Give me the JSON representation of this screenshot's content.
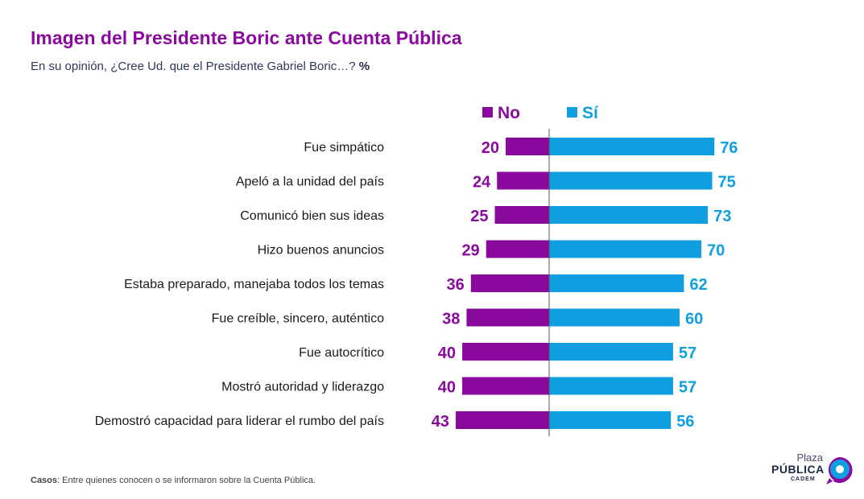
{
  "header": {
    "title": "Imagen del Presidente Boric ante Cuenta Pública",
    "subtitle": "En su opinión, ¿Cree Ud. que el Presidente Gabriel Boric…?",
    "unit": "%"
  },
  "chart_data": {
    "type": "bar",
    "orientation": "horizontal-diverging",
    "categories": [
      "Fue simpático",
      "Apeló a la unidad del país",
      "Comunicó bien sus ideas",
      "Hizo buenos anuncios",
      "Estaba preparado, manejaba todos los temas",
      "Fue creíble, sincero, auténtico",
      "Fue autocrítico",
      "Mostró autoridad y liderazgo",
      "Demostró capacidad para liderar el rumbo del país"
    ],
    "series": [
      {
        "name": "No",
        "color": "#8a0a9e",
        "values": [
          20,
          24,
          25,
          29,
          36,
          38,
          40,
          40,
          43
        ]
      },
      {
        "name": "Sí",
        "color": "#0f9fe0",
        "values": [
          76,
          75,
          73,
          70,
          62,
          60,
          57,
          57,
          56
        ]
      }
    ],
    "legend": "top-center",
    "grid": false
  },
  "footer": {
    "note_label": "Casos",
    "note_text": ": Entre quienes conocen o se informaron sobre la Cuenta Pública."
  },
  "logo": {
    "line1": "Plaza",
    "line2": "PÚBLICA",
    "line3": "CADEM",
    "icon": "speech-bubble-icon"
  }
}
